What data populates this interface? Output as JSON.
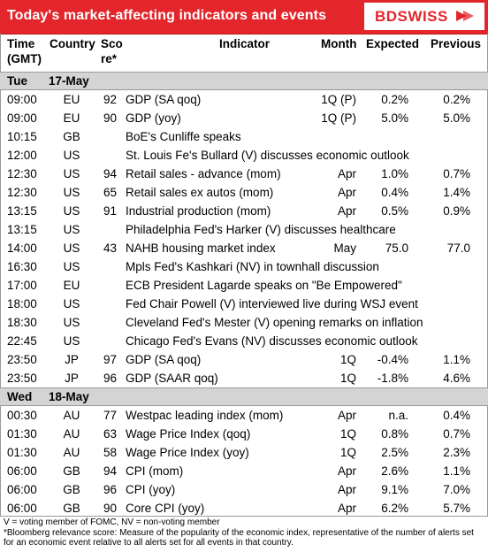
{
  "title": "Today's market-affecting indicators and events",
  "logo": "BDSWISS",
  "colors": {
    "brand_red": "#e3262c",
    "day_band": "#d4d4d4"
  },
  "headers": {
    "time_1": "Time",
    "time_2": "(GMT)",
    "country": "Country",
    "score_1": "Sco",
    "score_2": "re*",
    "indicator": "Indicator",
    "month": "Month",
    "expected": "Expected",
    "previous": "Previous"
  },
  "days": [
    {
      "day": "Tue",
      "date": "17-May",
      "rows": [
        {
          "time": "09:00",
          "country": "EU",
          "score": "92",
          "indicator": "GDP (SA qoq)",
          "month": "1Q (P)",
          "expected": "0.2%",
          "previous": "0.2%"
        },
        {
          "time": "09:00",
          "country": "EU",
          "score": "90",
          "indicator": "GDP (yoy)",
          "month": "1Q (P)",
          "expected": "5.0%",
          "previous": "5.0%"
        },
        {
          "time": "10:15",
          "country": "GB",
          "score": "",
          "indicator": "BoE's Cunliffe speaks",
          "month": "",
          "expected": "",
          "previous": ""
        },
        {
          "time": "12:00",
          "country": "US",
          "score": "",
          "indicator": "St. Louis Fe's Bullard (V) discusses economic outlook",
          "month": "",
          "expected": "",
          "previous": ""
        },
        {
          "time": "12:30",
          "country": "US",
          "score": "94",
          "indicator": "Retail sales - advance (mom)",
          "month": "Apr",
          "expected": "1.0%",
          "previous": "0.7%"
        },
        {
          "time": "12:30",
          "country": "US",
          "score": "65",
          "indicator": "Retail sales ex autos (mom)",
          "month": "Apr",
          "expected": "0.4%",
          "previous": "1.4%"
        },
        {
          "time": "13:15",
          "country": "US",
          "score": "91",
          "indicator": "Industrial production (mom)",
          "month": "Apr",
          "expected": "0.5%",
          "previous": "0.9%"
        },
        {
          "time": "13:15",
          "country": "US",
          "score": "",
          "indicator": "Philadelphia Fed's Harker (V) discusses healthcare",
          "month": "",
          "expected": "",
          "previous": ""
        },
        {
          "time": "14:00",
          "country": "US",
          "score": "43",
          "indicator": "NAHB housing market index",
          "month": "May",
          "expected": "75.0",
          "previous": "77.0"
        },
        {
          "time": "16:30",
          "country": "US",
          "score": "",
          "indicator": "Mpls Fed's Kashkari (NV) in townhall discussion",
          "month": "",
          "expected": "",
          "previous": ""
        },
        {
          "time": "17:00",
          "country": "EU",
          "score": "",
          "indicator": "ECB President Lagarde speaks on \"Be Empowered\"",
          "month": "",
          "expected": "",
          "previous": ""
        },
        {
          "time": "18:00",
          "country": "US",
          "score": "",
          "indicator": "Fed Chair Powell (V) interviewed live during WSJ event",
          "month": "",
          "expected": "",
          "previous": ""
        },
        {
          "time": "18:30",
          "country": "US",
          "score": "",
          "indicator": "Cleveland Fed's Mester (V) opening remarks on inflation",
          "month": "",
          "expected": "",
          "previous": ""
        },
        {
          "time": "22:45",
          "country": "US",
          "score": "",
          "indicator": "Chicago Fed's Evans (NV) discusses economic outlook",
          "month": "",
          "expected": "",
          "previous": ""
        },
        {
          "time": "23:50",
          "country": "JP",
          "score": "97",
          "indicator": "GDP (SA qoq)",
          "month": "1Q",
          "expected": "-0.4%",
          "previous": "1.1%"
        },
        {
          "time": "23:50",
          "country": "JP",
          "score": "96",
          "indicator": "GDP (SAAR qoq)",
          "month": "1Q",
          "expected": "-1.8%",
          "previous": "4.6%"
        }
      ]
    },
    {
      "day": "Wed",
      "date": "18-May",
      "rows": [
        {
          "time": "00:30",
          "country": "AU",
          "score": "77",
          "indicator": "Westpac leading index (mom)",
          "month": "Apr",
          "expected": "n.a.",
          "previous": "0.4%"
        },
        {
          "time": "01:30",
          "country": "AU",
          "score": "63",
          "indicator": "Wage Price Index (qoq)",
          "month": "1Q",
          "expected": "0.8%",
          "previous": "0.7%"
        },
        {
          "time": "01:30",
          "country": "AU",
          "score": "58",
          "indicator": "Wage Price Index (yoy)",
          "month": "1Q",
          "expected": "2.5%",
          "previous": "2.3%"
        },
        {
          "time": "06:00",
          "country": "GB",
          "score": "94",
          "indicator": "CPI (mom)",
          "month": "Apr",
          "expected": "2.6%",
          "previous": "1.1%"
        },
        {
          "time": "06:00",
          "country": "GB",
          "score": "96",
          "indicator": "CPI (yoy)",
          "month": "Apr",
          "expected": "9.1%",
          "previous": "7.0%"
        },
        {
          "time": "06:00",
          "country": "GB",
          "score": "90",
          "indicator": "Core CPI (yoy)",
          "month": "Apr",
          "expected": "6.2%",
          "previous": "5.7%"
        }
      ]
    }
  ],
  "footnotes": [
    "V = voting member of FOMC, NV = non-voting member",
    "*Bloomberg relevance score:  Measure of the popularity of the economic index, representative of the number of alerts set for an economic event relative to all alerts set for all events in that country."
  ]
}
